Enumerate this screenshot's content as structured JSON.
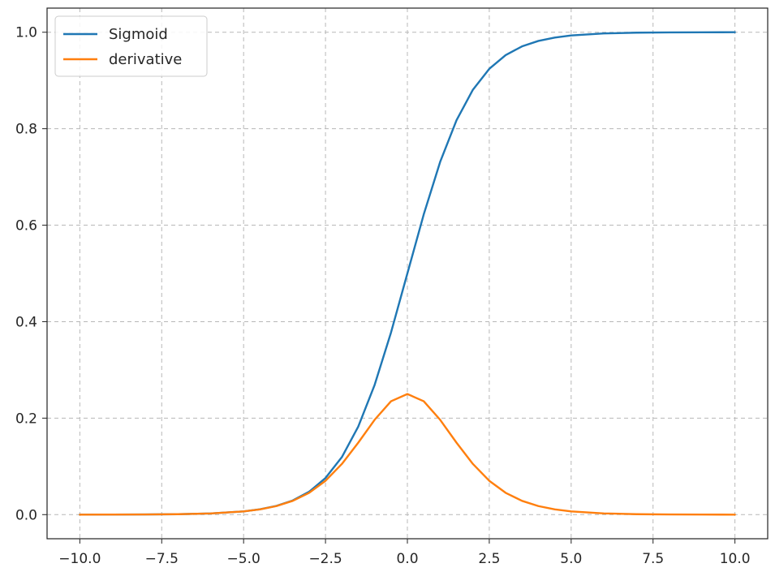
{
  "chart_data": {
    "type": "line",
    "title": "",
    "xlabel": "",
    "ylabel": "",
    "xlim": [
      -11.0,
      11.0
    ],
    "ylim": [
      -0.05,
      1.05
    ],
    "x_ticks": [
      -10.0,
      -7.5,
      -5.0,
      -2.5,
      0.0,
      2.5,
      5.0,
      7.5,
      10.0
    ],
    "x_tick_labels": [
      "−10.0",
      "−7.5",
      "−5.0",
      "−2.5",
      "0.0",
      "2.5",
      "5.0",
      "7.5",
      "10.0"
    ],
    "y_ticks": [
      0.0,
      0.2,
      0.4,
      0.6,
      0.8,
      1.0
    ],
    "y_tick_labels": [
      "0.0",
      "0.2",
      "0.4",
      "0.6",
      "0.8",
      "1.0"
    ],
    "grid": true,
    "grid_style": "dashed",
    "legend_position": "top-left",
    "series": [
      {
        "name": "Sigmoid",
        "color": "#1f77b4",
        "x": [
          -10,
          -9,
          -8,
          -7,
          -6,
          -5,
          -4.5,
          -4,
          -3.5,
          -3,
          -2.5,
          -2,
          -1.5,
          -1,
          -0.5,
          0,
          0.5,
          1,
          1.5,
          2,
          2.5,
          3,
          3.5,
          4,
          4.5,
          5,
          6,
          7,
          8,
          9,
          10
        ],
        "y": [
          0.0,
          0.0001,
          0.0003,
          0.0009,
          0.0025,
          0.0067,
          0.011,
          0.018,
          0.0293,
          0.0474,
          0.0759,
          0.1192,
          0.1824,
          0.2689,
          0.3775,
          0.5,
          0.6225,
          0.7311,
          0.8176,
          0.8808,
          0.9241,
          0.9526,
          0.9707,
          0.982,
          0.989,
          0.9933,
          0.9975,
          0.9991,
          0.9997,
          0.9999,
          1.0
        ]
      },
      {
        "name": "derivative",
        "color": "#ff7f0e",
        "x": [
          -10,
          -9,
          -8,
          -7,
          -6,
          -5,
          -4.5,
          -4,
          -3.5,
          -3,
          -2.5,
          -2,
          -1.5,
          -1,
          -0.5,
          0,
          0.5,
          1,
          1.5,
          2,
          2.5,
          3,
          3.5,
          4,
          4.5,
          5,
          6,
          7,
          8,
          9,
          10
        ],
        "y": [
          0.0,
          0.0001,
          0.0003,
          0.0009,
          0.0025,
          0.0066,
          0.0109,
          0.0177,
          0.0285,
          0.0452,
          0.0701,
          0.105,
          0.1491,
          0.1966,
          0.235,
          0.25,
          0.235,
          0.1966,
          0.1491,
          0.105,
          0.0701,
          0.0452,
          0.0285,
          0.0177,
          0.0109,
          0.0066,
          0.0025,
          0.0009,
          0.0003,
          0.0001,
          0.0
        ]
      }
    ]
  }
}
